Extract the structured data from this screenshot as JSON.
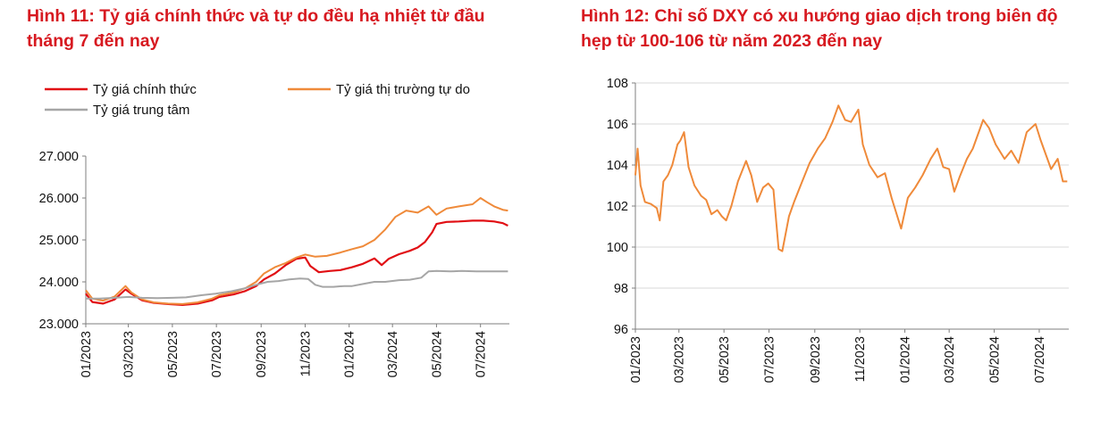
{
  "colors": {
    "title": "#d71920",
    "official": "#e10f14",
    "free_market": "#ef8a3a",
    "central": "#a6a6a6",
    "dxy": "#ef8a3a"
  },
  "chart_data": [
    {
      "type": "line",
      "title_lines": [
        "Hình 11: Tỷ giá chính thức và tự do đều hạ nhiệt từ đầu",
        "tháng 7 đến nay"
      ],
      "ylim": [
        23000,
        27000
      ],
      "y_ticks": [
        23000,
        24000,
        25000,
        26000,
        27000
      ],
      "y_tick_labels": [
        "23.000",
        "24.000",
        "25.000",
        "26.000",
        "27.000"
      ],
      "x_tick_labels": [
        "01/2023",
        "03/2023",
        "05/2023",
        "07/2023",
        "09/2023",
        "11/2023",
        "01/2024",
        "03/2024",
        "05/2024",
        "07/2024"
      ],
      "x_ticks": [
        "2023-01-01",
        "2023-03-01",
        "2023-05-01",
        "2023-07-01",
        "2023-09-01",
        "2023-11-01",
        "2024-01-01",
        "2024-03-01",
        "2024-05-01",
        "2024-07-01"
      ],
      "x_range": [
        "2023-01-01",
        "2024-08-10"
      ],
      "legend": [
        "Tỷ giá chính thức",
        "Tỷ giá thị trường tự do",
        "Tỷ giá trung tâm"
      ],
      "series": [
        {
          "name": "Tỷ giá chính thức",
          "color": "#e10f14",
          "points": [
            [
              "2023-01-01",
              23720
            ],
            [
              "2023-01-10",
              23520
            ],
            [
              "2023-01-25",
              23480
            ],
            [
              "2023-02-10",
              23580
            ],
            [
              "2023-02-25",
              23820
            ],
            [
              "2023-03-05",
              23720
            ],
            [
              "2023-03-20",
              23560
            ],
            [
              "2023-04-05",
              23500
            ],
            [
              "2023-04-25",
              23470
            ],
            [
              "2023-05-15",
              23450
            ],
            [
              "2023-06-05",
              23480
            ],
            [
              "2023-06-25",
              23560
            ],
            [
              "2023-07-05",
              23640
            ],
            [
              "2023-07-25",
              23700
            ],
            [
              "2023-08-10",
              23780
            ],
            [
              "2023-08-25",
              23900
            ],
            [
              "2023-09-05",
              24060
            ],
            [
              "2023-09-20",
              24200
            ],
            [
              "2023-10-05",
              24400
            ],
            [
              "2023-10-20",
              24550
            ],
            [
              "2023-11-01",
              24580
            ],
            [
              "2023-11-08",
              24380
            ],
            [
              "2023-11-20",
              24230
            ],
            [
              "2023-12-05",
              24260
            ],
            [
              "2023-12-20",
              24280
            ],
            [
              "2024-01-05",
              24350
            ],
            [
              "2024-01-20",
              24430
            ],
            [
              "2024-02-05",
              24560
            ],
            [
              "2024-02-15",
              24400
            ],
            [
              "2024-02-25",
              24550
            ],
            [
              "2024-03-10",
              24660
            ],
            [
              "2024-03-25",
              24740
            ],
            [
              "2024-04-05",
              24820
            ],
            [
              "2024-04-15",
              24950
            ],
            [
              "2024-04-25",
              25180
            ],
            [
              "2024-05-01",
              25380
            ],
            [
              "2024-05-15",
              25430
            ],
            [
              "2024-06-01",
              25440
            ],
            [
              "2024-06-20",
              25460
            ],
            [
              "2024-07-05",
              25460
            ],
            [
              "2024-07-20",
              25440
            ],
            [
              "2024-08-01",
              25400
            ],
            [
              "2024-08-08",
              25340
            ]
          ]
        },
        {
          "name": "Tỷ giá thị trường tự do",
          "color": "#ef8a3a",
          "points": [
            [
              "2023-01-01",
              23800
            ],
            [
              "2023-01-10",
              23600
            ],
            [
              "2023-01-25",
              23550
            ],
            [
              "2023-02-10",
              23650
            ],
            [
              "2023-02-25",
              23900
            ],
            [
              "2023-03-05",
              23750
            ],
            [
              "2023-03-20",
              23580
            ],
            [
              "2023-04-05",
              23510
            ],
            [
              "2023-04-25",
              23480
            ],
            [
              "2023-05-15",
              23470
            ],
            [
              "2023-06-05",
              23510
            ],
            [
              "2023-06-25",
              23600
            ],
            [
              "2023-07-05",
              23680
            ],
            [
              "2023-07-25",
              23750
            ],
            [
              "2023-08-10",
              23850
            ],
            [
              "2023-08-25",
              24000
            ],
            [
              "2023-09-05",
              24200
            ],
            [
              "2023-09-20",
              24350
            ],
            [
              "2023-10-05",
              24450
            ],
            [
              "2023-10-20",
              24580
            ],
            [
              "2023-11-01",
              24650
            ],
            [
              "2023-11-15",
              24600
            ],
            [
              "2023-12-01",
              24620
            ],
            [
              "2023-12-20",
              24700
            ],
            [
              "2024-01-05",
              24780
            ],
            [
              "2024-01-20",
              24850
            ],
            [
              "2024-02-05",
              25000
            ],
            [
              "2024-02-20",
              25250
            ],
            [
              "2024-03-05",
              25550
            ],
            [
              "2024-03-20",
              25700
            ],
            [
              "2024-04-05",
              25650
            ],
            [
              "2024-04-20",
              25800
            ],
            [
              "2024-05-01",
              25600
            ],
            [
              "2024-05-15",
              25750
            ],
            [
              "2024-06-01",
              25800
            ],
            [
              "2024-06-20",
              25850
            ],
            [
              "2024-07-01",
              26000
            ],
            [
              "2024-07-10",
              25900
            ],
            [
              "2024-07-20",
              25800
            ],
            [
              "2024-08-01",
              25720
            ],
            [
              "2024-08-08",
              25700
            ]
          ]
        },
        {
          "name": "Tỷ giá trung tâm",
          "color": "#a6a6a6",
          "points": [
            [
              "2023-01-01",
              23600
            ],
            [
              "2023-01-20",
              23600
            ],
            [
              "2023-02-10",
              23620
            ],
            [
              "2023-03-01",
              23640
            ],
            [
              "2023-03-20",
              23620
            ],
            [
              "2023-04-10",
              23610
            ],
            [
              "2023-05-01",
              23620
            ],
            [
              "2023-05-20",
              23630
            ],
            [
              "2023-06-10",
              23680
            ],
            [
              "2023-06-30",
              23720
            ],
            [
              "2023-07-20",
              23770
            ],
            [
              "2023-08-10",
              23850
            ],
            [
              "2023-08-25",
              23930
            ],
            [
              "2023-09-10",
              24000
            ],
            [
              "2023-09-25",
              24020
            ],
            [
              "2023-10-10",
              24060
            ],
            [
              "2023-10-25",
              24080
            ],
            [
              "2023-11-05",
              24070
            ],
            [
              "2023-11-15",
              23930
            ],
            [
              "2023-11-25",
              23880
            ],
            [
              "2023-12-10",
              23880
            ],
            [
              "2023-12-25",
              23900
            ],
            [
              "2024-01-05",
              23900
            ],
            [
              "2024-01-20",
              23950
            ],
            [
              "2024-02-05",
              24000
            ],
            [
              "2024-02-20",
              24000
            ],
            [
              "2024-03-10",
              24040
            ],
            [
              "2024-03-25",
              24050
            ],
            [
              "2024-04-10",
              24100
            ],
            [
              "2024-04-20",
              24250
            ],
            [
              "2024-05-01",
              24260
            ],
            [
              "2024-05-20",
              24250
            ],
            [
              "2024-06-05",
              24260
            ],
            [
              "2024-06-25",
              24250
            ],
            [
              "2024-07-10",
              24250
            ],
            [
              "2024-07-25",
              24250
            ],
            [
              "2024-08-08",
              24250
            ]
          ]
        }
      ]
    },
    {
      "type": "line",
      "title_lines": [
        "Hình 12: Chỉ số DXY có xu hướng giao dịch trong biên độ",
        "hẹp từ 100-106 từ năm 2023 đến nay"
      ],
      "ylim": [
        96,
        108
      ],
      "y_ticks": [
        96,
        98,
        100,
        102,
        104,
        106,
        108
      ],
      "y_tick_labels": [
        "96",
        "98",
        "100",
        "102",
        "104",
        "106",
        "108"
      ],
      "x_tick_labels": [
        "01/2023",
        "03/2023",
        "05/2023",
        "07/2023",
        "09/2023",
        "11/2023",
        "01/2024",
        "03/2024",
        "05/2024",
        "07/2024"
      ],
      "x_ticks": [
        "2023-01-01",
        "2023-03-01",
        "2023-05-01",
        "2023-07-01",
        "2023-09-01",
        "2023-11-01",
        "2024-01-01",
        "2024-03-01",
        "2024-05-01",
        "2024-07-01"
      ],
      "x_range": [
        "2023-01-01",
        "2024-08-10"
      ],
      "grid": true,
      "series": [
        {
          "color": "#ef8a3a",
          "points": [
            [
              "2023-01-01",
              103.5
            ],
            [
              "2023-01-04",
              104.8
            ],
            [
              "2023-01-08",
              103.0
            ],
            [
              "2023-01-14",
              102.2
            ],
            [
              "2023-01-22",
              102.1
            ],
            [
              "2023-01-30",
              101.9
            ],
            [
              "2023-02-03",
              101.3
            ],
            [
              "2023-02-08",
              103.2
            ],
            [
              "2023-02-14",
              103.5
            ],
            [
              "2023-02-20",
              104.0
            ],
            [
              "2023-02-27",
              105.0
            ],
            [
              "2023-03-03",
              105.2
            ],
            [
              "2023-03-08",
              105.6
            ],
            [
              "2023-03-14",
              103.9
            ],
            [
              "2023-03-22",
              103.0
            ],
            [
              "2023-03-31",
              102.5
            ],
            [
              "2023-04-07",
              102.3
            ],
            [
              "2023-04-14",
              101.6
            ],
            [
              "2023-04-22",
              101.8
            ],
            [
              "2023-04-28",
              101.5
            ],
            [
              "2023-05-04",
              101.3
            ],
            [
              "2023-05-11",
              102.0
            ],
            [
              "2023-05-20",
              103.2
            ],
            [
              "2023-05-31",
              104.2
            ],
            [
              "2023-06-07",
              103.5
            ],
            [
              "2023-06-15",
              102.2
            ],
            [
              "2023-06-23",
              102.9
            ],
            [
              "2023-06-30",
              103.1
            ],
            [
              "2023-07-07",
              102.8
            ],
            [
              "2023-07-14",
              99.9
            ],
            [
              "2023-07-19",
              99.8
            ],
            [
              "2023-07-28",
              101.5
            ],
            [
              "2023-08-04",
              102.2
            ],
            [
              "2023-08-15",
              103.2
            ],
            [
              "2023-08-25",
              104.1
            ],
            [
              "2023-09-05",
              104.8
            ],
            [
              "2023-09-15",
              105.3
            ],
            [
              "2023-09-25",
              106.1
            ],
            [
              "2023-10-03",
              106.9
            ],
            [
              "2023-10-12",
              106.2
            ],
            [
              "2023-10-20",
              106.1
            ],
            [
              "2023-10-30",
              106.7
            ],
            [
              "2023-11-05",
              105.0
            ],
            [
              "2023-11-14",
              104.0
            ],
            [
              "2023-11-25",
              103.4
            ],
            [
              "2023-12-05",
              103.6
            ],
            [
              "2023-12-14",
              102.4
            ],
            [
              "2023-12-27",
              100.9
            ],
            [
              "2024-01-05",
              102.4
            ],
            [
              "2024-01-15",
              102.9
            ],
            [
              "2024-01-25",
              103.5
            ],
            [
              "2024-02-05",
              104.3
            ],
            [
              "2024-02-14",
              104.8
            ],
            [
              "2024-02-22",
              103.9
            ],
            [
              "2024-03-01",
              103.8
            ],
            [
              "2024-03-08",
              102.7
            ],
            [
              "2024-03-15",
              103.4
            ],
            [
              "2024-03-25",
              104.3
            ],
            [
              "2024-04-02",
              104.8
            ],
            [
              "2024-04-12",
              105.8
            ],
            [
              "2024-04-16",
              106.2
            ],
            [
              "2024-04-24",
              105.8
            ],
            [
              "2024-05-03",
              105.0
            ],
            [
              "2024-05-15",
              104.3
            ],
            [
              "2024-05-24",
              104.7
            ],
            [
              "2024-06-03",
              104.1
            ],
            [
              "2024-06-14",
              105.6
            ],
            [
              "2024-06-26",
              106.0
            ],
            [
              "2024-07-03",
              105.2
            ],
            [
              "2024-07-17",
              103.8
            ],
            [
              "2024-07-26",
              104.3
            ],
            [
              "2024-08-02",
              103.2
            ],
            [
              "2024-08-08",
              103.2
            ]
          ]
        }
      ]
    }
  ]
}
